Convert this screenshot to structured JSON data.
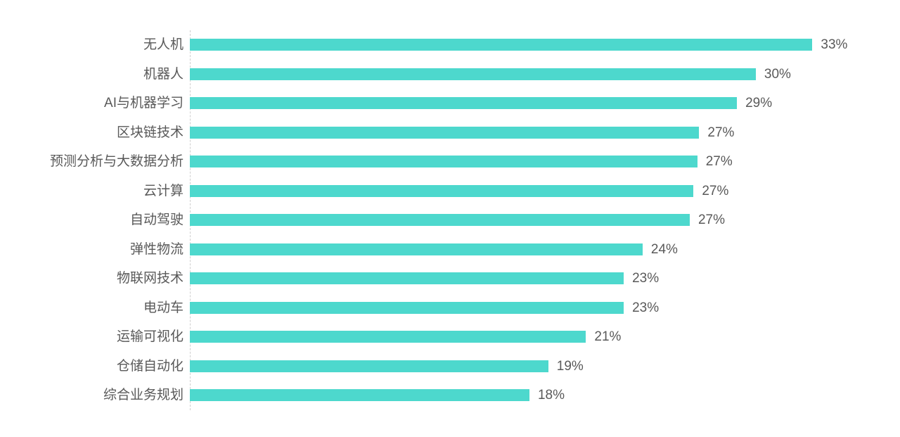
{
  "chart_data": {
    "type": "bar",
    "orientation": "horizontal",
    "title": "",
    "xlabel": "",
    "ylabel": "",
    "grid": false,
    "legend": false,
    "xlim": [
      0,
      33
    ],
    "categories": [
      "无人机",
      "机器人",
      "AI与机器学习",
      "区块链技术",
      "预测分析与大数据分析",
      "云计算",
      "自动驾驶",
      "弹性物流",
      "物联网技术",
      "电动车",
      "运输可视化",
      "仓储自动化",
      "综合业务规划"
    ],
    "values": [
      33,
      30,
      29,
      27,
      27,
      27,
      27,
      24,
      23,
      23,
      21,
      19,
      18
    ],
    "value_labels": [
      "33%",
      "30%",
      "29%",
      "27%",
      "27%",
      "27%",
      "27%",
      "24%",
      "23%",
      "23%",
      "21%",
      "19%",
      "18%"
    ],
    "plot_values": [
      33,
      30,
      29,
      27.0,
      26.9,
      26.7,
      26.5,
      24,
      23,
      23,
      21,
      19,
      18
    ],
    "colors": {
      "bar": "#4DD8CD",
      "label": "#595959",
      "axis_line": "#CFCFCF",
      "background": "#FFFFFF"
    }
  }
}
